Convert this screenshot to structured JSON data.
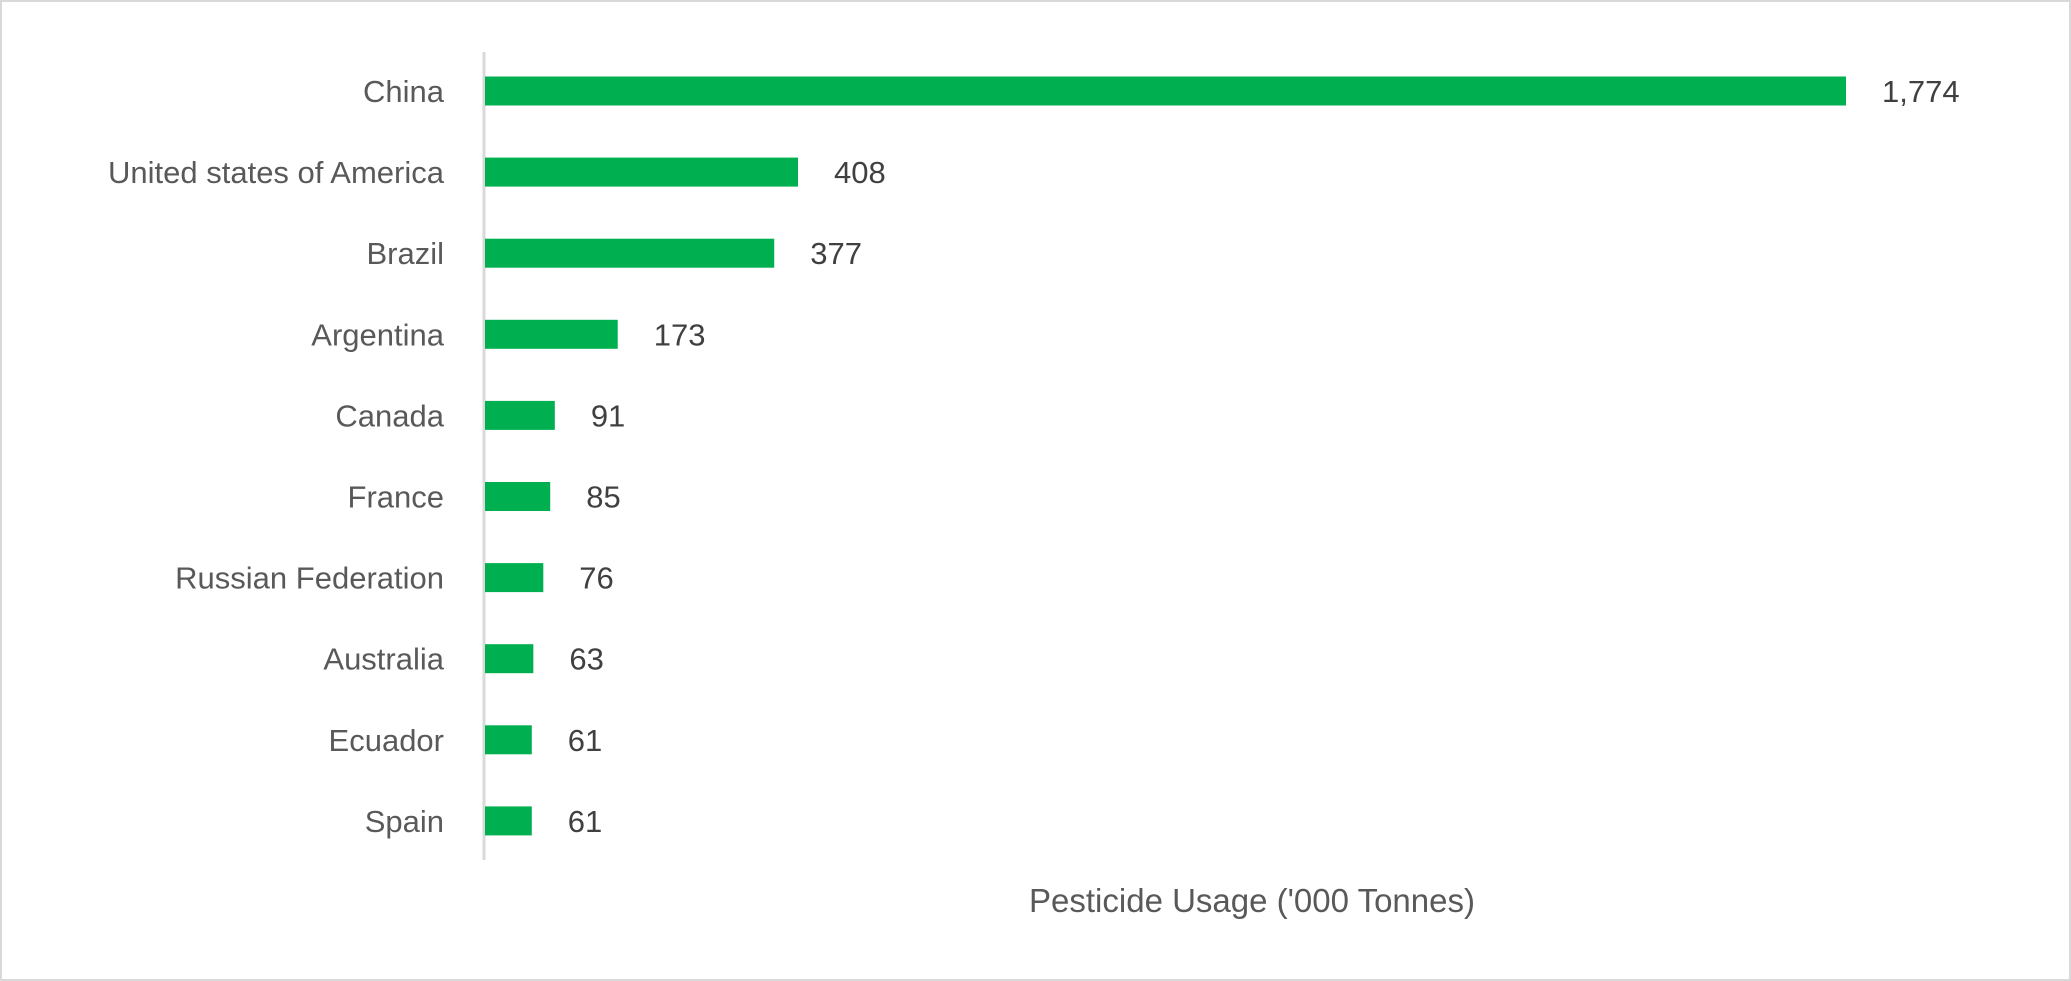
{
  "chart_data": {
    "type": "bar",
    "orientation": "horizontal",
    "title": "",
    "xlabel": "Pesticide Usage ('000 Tonnes)",
    "ylabel": "",
    "categories": [
      "China",
      "United states of America",
      "Brazil",
      "Argentina",
      "Canada",
      "France",
      "Russian Federation",
      "Australia",
      "Ecuador",
      "Spain"
    ],
    "values": [
      1774,
      408,
      377,
      173,
      91,
      85,
      76,
      63,
      61,
      61
    ],
    "value_labels": [
      "1,774",
      "408",
      "377",
      "173",
      "91",
      "85",
      "76",
      "63",
      "61",
      "61"
    ],
    "xlim": [
      0,
      1774
    ],
    "grid": false,
    "legend": "none",
    "colors": {
      "bar": "#00b050",
      "axis": "#d9d9d9"
    }
  }
}
